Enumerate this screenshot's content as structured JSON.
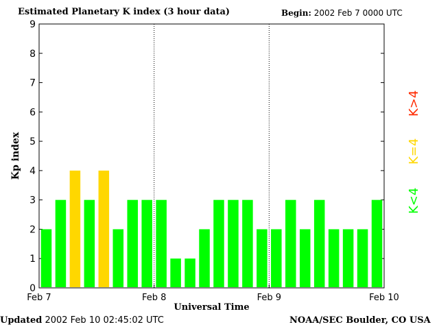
{
  "header": {
    "title": "Estimated Planetary K index (3 hour data)",
    "begin_label": "Begin:",
    "begin_value": "2002 Feb 7 0000 UTC"
  },
  "footer": {
    "updated_label": "Updated",
    "updated_value": "2002 Feb 10 02:45:02 UTC",
    "credit": "NOAA/SEC Boulder, CO USA"
  },
  "legend": {
    "high": "K>4",
    "mid": "K=4",
    "low": "K<4"
  },
  "colors": {
    "low": "#00ff00",
    "mid": "#ffd700",
    "high": "#ff2a00",
    "axis": "#000000"
  },
  "chart_data": {
    "type": "bar",
    "title": "Estimated Planetary K index (3 hour data)",
    "xlabel": "Universal Time",
    "ylabel": "Kp index",
    "ylim": [
      0,
      9
    ],
    "yticks": [
      "0",
      "1",
      "2",
      "3",
      "4",
      "5",
      "6",
      "7",
      "8",
      "9"
    ],
    "xtick_labels": [
      "Feb 7",
      "Feb 8",
      "Feb 9",
      "Feb 10"
    ],
    "day_dividers": true,
    "values": [
      2,
      3,
      4,
      3,
      4,
      2,
      3,
      3,
      3,
      1,
      1,
      2,
      3,
      3,
      3,
      2,
      2,
      3,
      2,
      3,
      2,
      2,
      2,
      3
    ]
  }
}
